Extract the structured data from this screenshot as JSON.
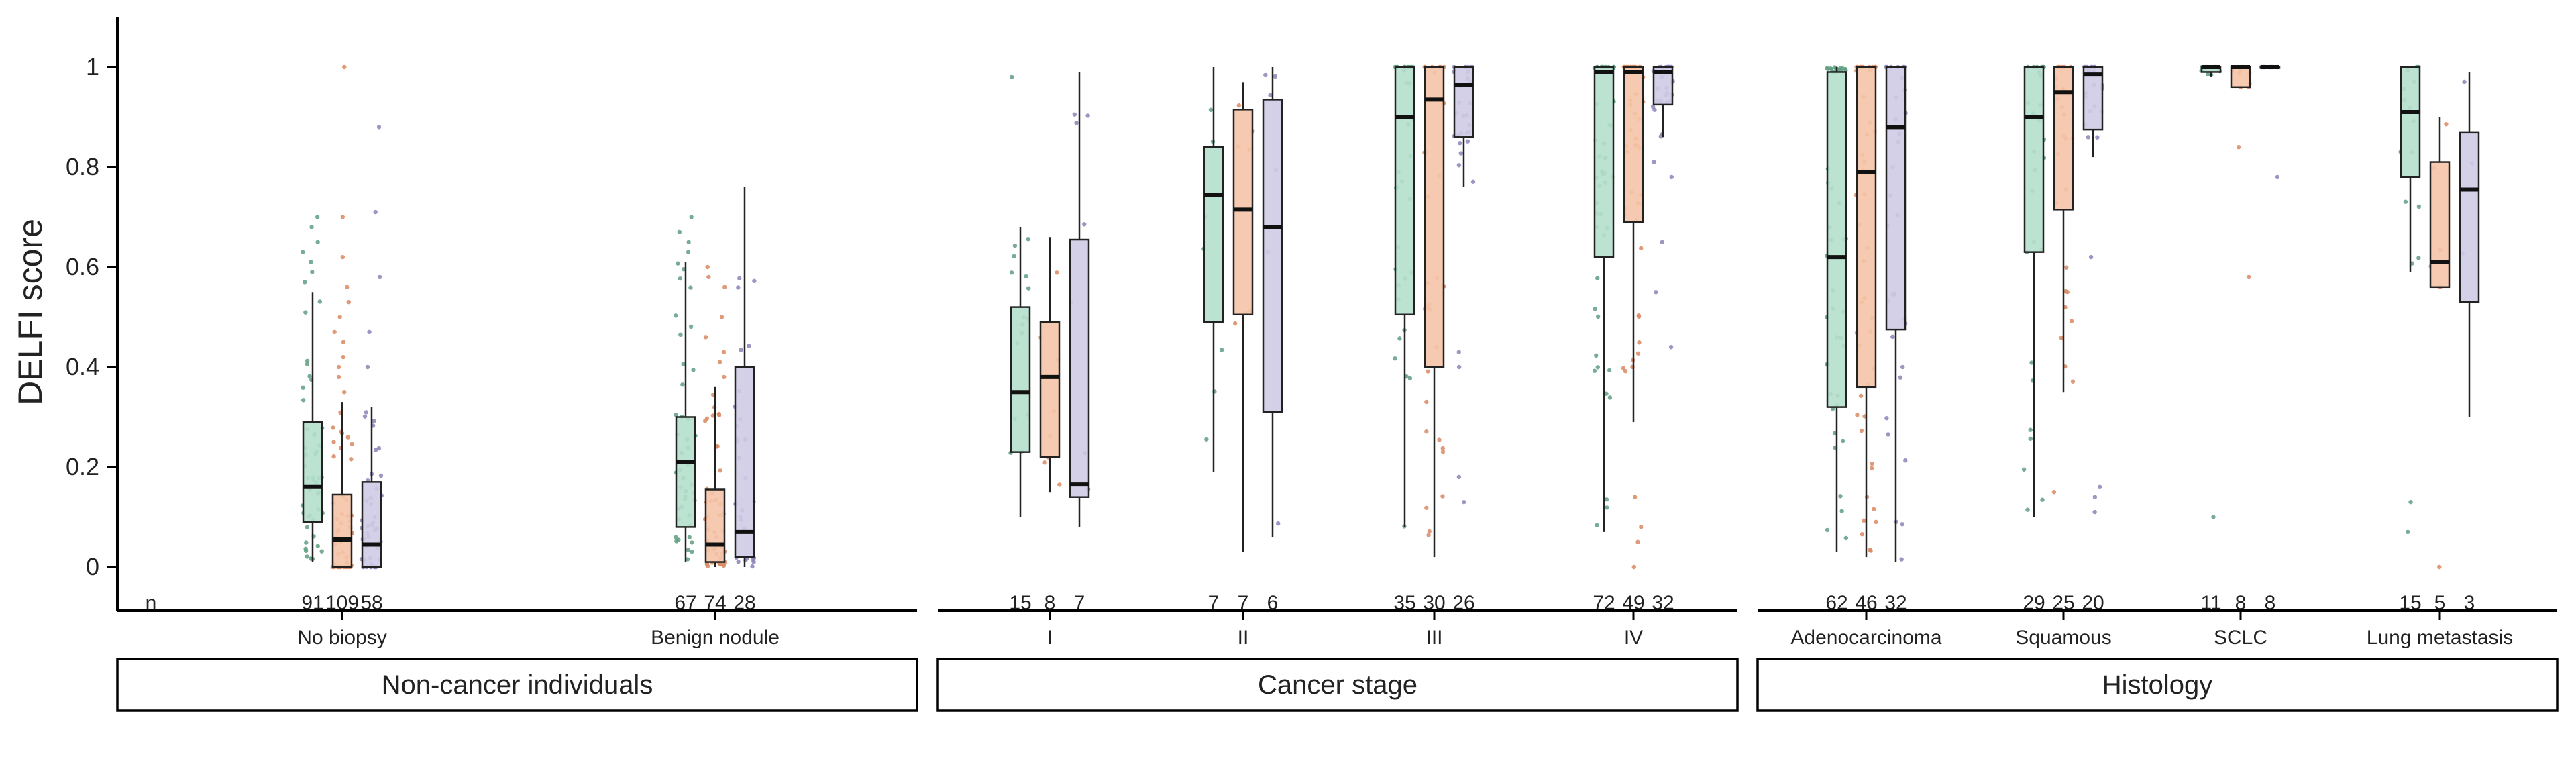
{
  "chart_data": {
    "type": "box",
    "ylabel": "DELFI score",
    "ylim": [
      0,
      1
    ],
    "yticks": [
      0,
      0.2,
      0.4,
      0.6,
      0.8,
      1
    ],
    "ytick_labels": [
      "0",
      "0.2",
      "0.4",
      "0.6",
      "0.8",
      "1"
    ],
    "n_label": "n",
    "colors": [
      "#b5dfcc",
      "#f5c4a8",
      "#cfcbe6"
    ],
    "point_colors": [
      "#5f9e83",
      "#d98a62",
      "#8b84b8"
    ],
    "panels": [
      {
        "strip": "Non-cancer individuals",
        "groups": [
          {
            "label": "No biopsy",
            "boxes": [
              {
                "n": "91",
                "q1": 0.09,
                "median": 0.16,
                "q3": 0.29,
                "lo": 0.01,
                "hi": 0.55,
                "outliers": [
                  0.57,
                  0.59,
                  0.61,
                  0.63,
                  0.65,
                  0.68,
                  0.7
                ]
              },
              {
                "n": "109",
                "q1": 0.0,
                "median": 0.055,
                "q3": 0.145,
                "lo": 0.0,
                "hi": 0.33,
                "outliers": [
                  0.35,
                  0.38,
                  0.4,
                  0.42,
                  0.45,
                  0.47,
                  0.5,
                  0.53,
                  0.56,
                  0.62,
                  0.7,
                  1.0
                ]
              },
              {
                "n": "58",
                "q1": 0.0,
                "median": 0.045,
                "q3": 0.17,
                "lo": 0.0,
                "hi": 0.32,
                "outliers": [
                  0.4,
                  0.47,
                  0.58,
                  0.71,
                  0.88
                ]
              }
            ]
          },
          {
            "label": "Benign nodule",
            "boxes": [
              {
                "n": "67",
                "q1": 0.08,
                "median": 0.21,
                "q3": 0.3,
                "lo": 0.01,
                "hi": 0.61,
                "outliers": [
                  0.63,
                  0.65,
                  0.67,
                  0.7
                ]
              },
              {
                "n": "74",
                "q1": 0.01,
                "median": 0.045,
                "q3": 0.155,
                "lo": 0.0,
                "hi": 0.36,
                "outliers": [
                  0.38,
                  0.41,
                  0.43,
                  0.46,
                  0.5,
                  0.56,
                  0.58,
                  0.6
                ]
              },
              {
                "n": "28",
                "q1": 0.02,
                "median": 0.07,
                "q3": 0.4,
                "lo": 0.0,
                "hi": 0.76,
                "outliers": []
              }
            ]
          }
        ]
      },
      {
        "strip": "Cancer stage",
        "groups": [
          {
            "label": "I",
            "boxes": [
              {
                "n": "15",
                "q1": 0.23,
                "median": 0.35,
                "q3": 0.52,
                "lo": 0.1,
                "hi": 0.68,
                "outliers": [
                  0.98
                ]
              },
              {
                "n": "8",
                "q1": 0.22,
                "median": 0.38,
                "q3": 0.49,
                "lo": 0.15,
                "hi": 0.66,
                "outliers": []
              },
              {
                "n": "7",
                "q1": 0.14,
                "median": 0.165,
                "q3": 0.655,
                "lo": 0.08,
                "hi": 0.99,
                "outliers": []
              }
            ]
          },
          {
            "label": "II",
            "boxes": [
              {
                "n": "7",
                "q1": 0.49,
                "median": 0.745,
                "q3": 0.84,
                "lo": 0.19,
                "hi": 1.0,
                "outliers": []
              },
              {
                "n": "7",
                "q1": 0.505,
                "median": 0.715,
                "q3": 0.915,
                "lo": 0.03,
                "hi": 0.97,
                "outliers": []
              },
              {
                "n": "6",
                "q1": 0.31,
                "median": 0.68,
                "q3": 0.935,
                "lo": 0.06,
                "hi": 1.0,
                "outliers": []
              }
            ]
          },
          {
            "label": "III",
            "boxes": [
              {
                "n": "35",
                "q1": 0.505,
                "median": 0.9,
                "q3": 1.0,
                "lo": 0.08,
                "hi": 1.0,
                "outliers": []
              },
              {
                "n": "30",
                "q1": 0.4,
                "median": 0.935,
                "q3": 1.0,
                "lo": 0.02,
                "hi": 1.0,
                "outliers": []
              },
              {
                "n": "26",
                "q1": 0.86,
                "median": 0.965,
                "q3": 1.0,
                "lo": 0.76,
                "hi": 1.0,
                "outliers": [
                  0.13,
                  0.18,
                  0.4,
                  0.43
                ]
              }
            ]
          },
          {
            "label": "IV",
            "boxes": [
              {
                "n": "72",
                "q1": 0.62,
                "median": 0.99,
                "q3": 1.0,
                "lo": 0.07,
                "hi": 1.0,
                "outliers": []
              },
              {
                "n": "49",
                "q1": 0.69,
                "median": 0.99,
                "q3": 1.0,
                "lo": 0.29,
                "hi": 1.0,
                "outliers": [
                  0.0,
                  0.05,
                  0.08,
                  0.14
                ]
              },
              {
                "n": "32",
                "q1": 0.925,
                "median": 0.99,
                "q3": 1.0,
                "lo": 0.86,
                "hi": 1.0,
                "outliers": [
                  0.44,
                  0.55,
                  0.65,
                  0.78,
                  0.81
                ]
              }
            ]
          }
        ]
      },
      {
        "strip": "Histology",
        "groups": [
          {
            "label": "Adenocarcinoma",
            "boxes": [
              {
                "n": "62",
                "q1": 0.32,
                "median": 0.62,
                "q3": 0.99,
                "lo": 0.03,
                "hi": 1.0,
                "outliers": []
              },
              {
                "n": "46",
                "q1": 0.36,
                "median": 0.79,
                "q3": 1.0,
                "lo": 0.02,
                "hi": 1.0,
                "outliers": []
              },
              {
                "n": "32",
                "q1": 0.475,
                "median": 0.88,
                "q3": 1.0,
                "lo": 0.01,
                "hi": 1.0,
                "outliers": []
              }
            ]
          },
          {
            "label": "Squamous",
            "boxes": [
              {
                "n": "29",
                "q1": 0.63,
                "median": 0.9,
                "q3": 1.0,
                "lo": 0.1,
                "hi": 1.0,
                "outliers": []
              },
              {
                "n": "25",
                "q1": 0.715,
                "median": 0.95,
                "q3": 1.0,
                "lo": 0.35,
                "hi": 1.0,
                "outliers": [
                  0.15
                ]
              },
              {
                "n": "20",
                "q1": 0.875,
                "median": 0.985,
                "q3": 1.0,
                "lo": 0.82,
                "hi": 1.0,
                "outliers": [
                  0.11,
                  0.14,
                  0.16,
                  0.62
                ]
              }
            ]
          },
          {
            "label": "SCLC",
            "boxes": [
              {
                "n": "11",
                "q1": 0.99,
                "median": 1.0,
                "q3": 1.0,
                "lo": 0.98,
                "hi": 1.0,
                "outliers": [
                  0.1
                ]
              },
              {
                "n": "8",
                "q1": 0.96,
                "median": 1.0,
                "q3": 1.0,
                "lo": 0.96,
                "hi": 1.0,
                "outliers": [
                  0.58,
                  0.84
                ]
              },
              {
                "n": "8",
                "q1": 1.0,
                "median": 1.0,
                "q3": 1.0,
                "lo": 1.0,
                "hi": 1.0,
                "outliers": [
                  0.78
                ]
              }
            ]
          },
          {
            "label": "Lung metastasis",
            "boxes": [
              {
                "n": "15",
                "q1": 0.78,
                "median": 0.91,
                "q3": 1.0,
                "lo": 0.59,
                "hi": 1.0,
                "outliers": [
                  0.07,
                  0.13
                ]
              },
              {
                "n": "5",
                "q1": 0.56,
                "median": 0.61,
                "q3": 0.81,
                "lo": 0.56,
                "hi": 0.9,
                "outliers": [
                  0.0
                ]
              },
              {
                "n": "3",
                "q1": 0.53,
                "median": 0.755,
                "q3": 0.87,
                "lo": 0.3,
                "hi": 0.99,
                "outliers": []
              }
            ]
          }
        ]
      }
    ]
  }
}
